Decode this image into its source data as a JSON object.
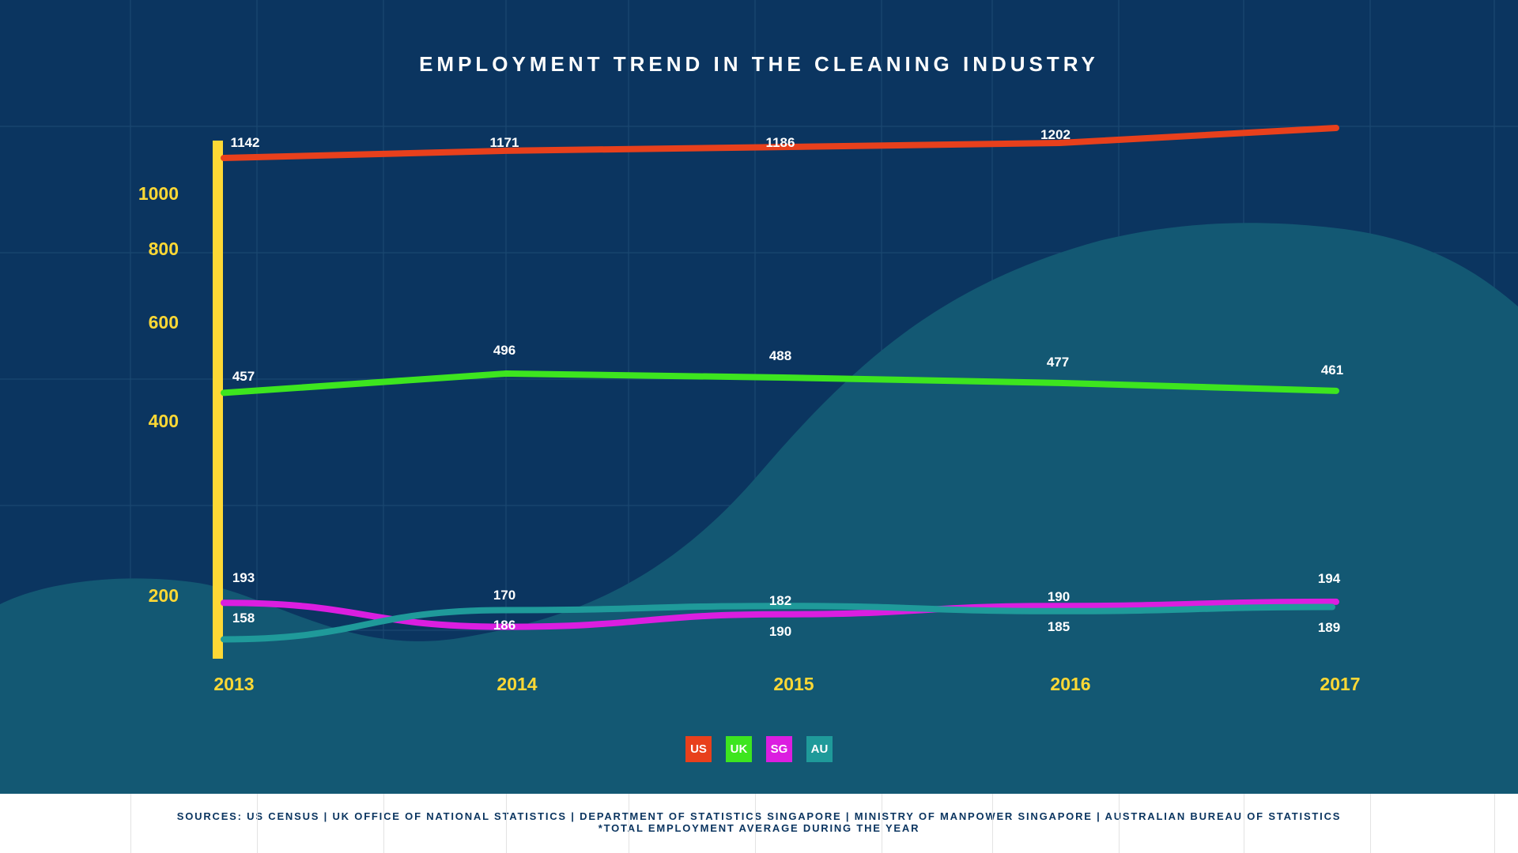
{
  "colors": {
    "background": "#0b3560",
    "area": "#135873",
    "axis": "#fdd835",
    "us": "#e8401c",
    "uk": "#3de51f",
    "sg": "#db1ee0",
    "au": "#1f9a9a"
  },
  "chart_data": {
    "type": "line",
    "title": "EMPLOYMENT TREND IN THE CLEANING INDUSTRY",
    "categories": [
      "2013",
      "2014",
      "2015",
      "2016",
      "2017"
    ],
    "y_tick_labels": [
      "1000",
      "800",
      "600",
      "400",
      "200"
    ],
    "series": [
      {
        "name": "US",
        "values": [
          1142,
          1171,
          1186,
          1202,
          null
        ],
        "labels": [
          "1142",
          "1171",
          "1186",
          "1202",
          ""
        ]
      },
      {
        "name": "UK",
        "values": [
          457,
          496,
          488,
          477,
          461
        ],
        "labels": [
          "457",
          "496",
          "488",
          "477",
          "461"
        ]
      },
      {
        "name": "SG",
        "values": [
          193,
          170,
          182,
          190,
          194
        ],
        "labels": [
          "193",
          "170",
          "182",
          "190",
          "194"
        ]
      },
      {
        "name": "AU",
        "values": [
          158,
          186,
          190,
          185,
          189
        ],
        "labels": [
          "158",
          "186",
          "190",
          "185",
          "189"
        ]
      }
    ],
    "legend": [
      "US",
      "UK",
      "SG",
      "AU"
    ],
    "legend_position": "bottom-center",
    "grid": true
  },
  "footer": {
    "sources": "SOURCES: US CENSUS | UK OFFICE OF NATIONAL STATISTICS | DEPARTMENT OF STATISTICS SINGAPORE | MINISTRY OF MANPOWER SINGAPORE | AUSTRALIAN BUREAU OF STATISTICS",
    "note": "*TOTAL EMPLOYMENT AVERAGE DURING THE YEAR"
  }
}
